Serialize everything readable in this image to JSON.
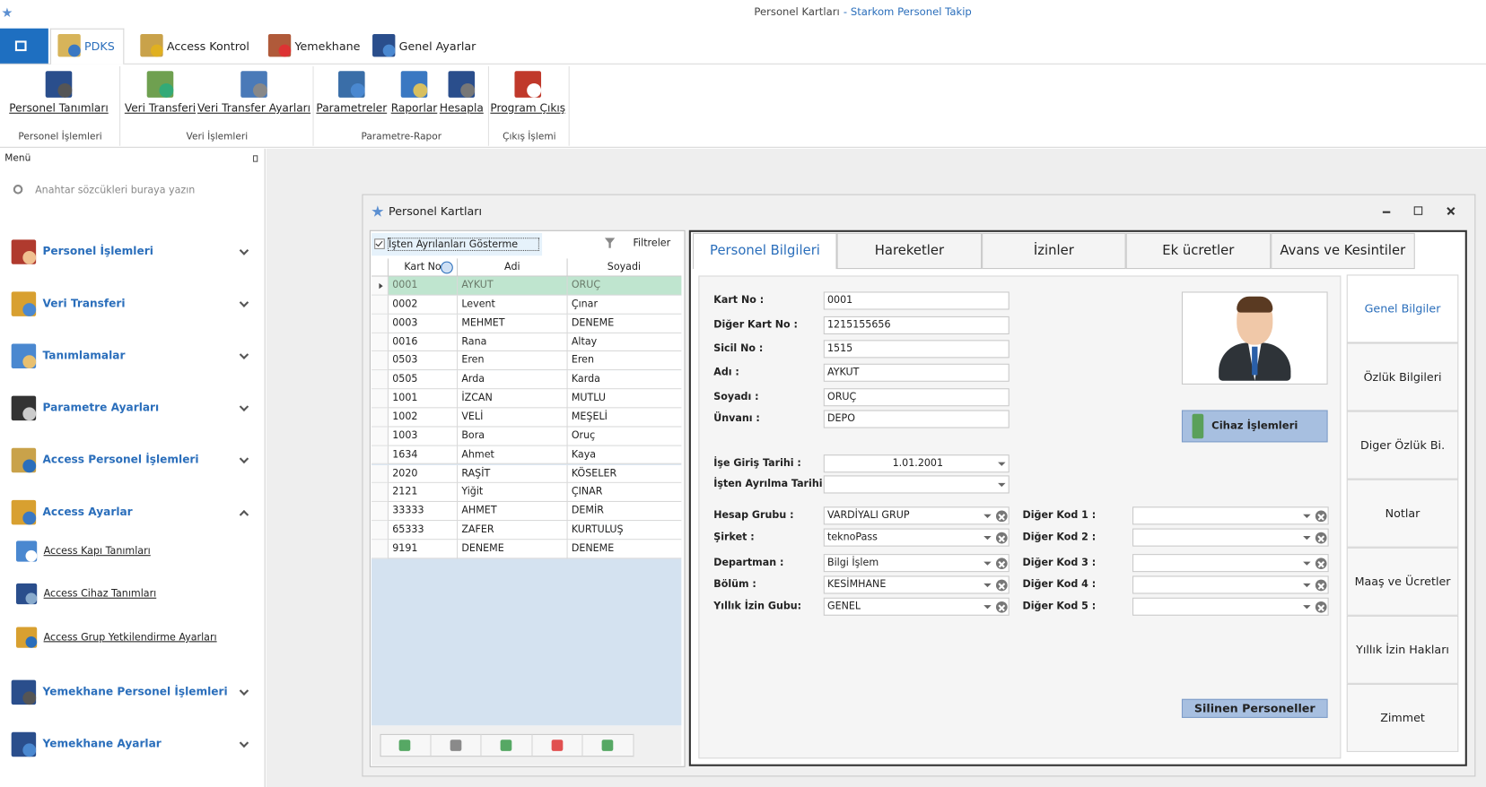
{
  "window": {
    "title": "Personel Kartları",
    "app": "- Starkom Personel Takip"
  },
  "ribbon": {
    "tabs": [
      "PDKS",
      "Access Kontrol",
      "Yemekhane",
      "Genel Ayarlar"
    ],
    "groups": [
      {
        "label": "Personel İşlemleri",
        "buttons": [
          "Personel Tanımları"
        ]
      },
      {
        "label": "Veri İşlemleri",
        "buttons": [
          "Veri Transferi",
          "Veri Transfer Ayarları"
        ]
      },
      {
        "label": "Parametre-Rapor",
        "buttons": [
          "Parametreler",
          "Raporlar",
          "Hesapla"
        ]
      },
      {
        "label": "Çıkış İşlemi",
        "buttons": [
          "Program Çıkış"
        ]
      }
    ]
  },
  "menu": {
    "title": "Menü",
    "search_placeholder": "Anahtar sözcükleri buraya yazın",
    "items": [
      "Personel İşlemleri",
      "Veri Transferi",
      "Tanımlamalar",
      "Parametre Ayarları",
      "Access Personel İşlemleri",
      "Access Ayarlar",
      "Yemekhane Personel İşlemleri",
      "Yemekhane Ayarlar"
    ],
    "subitems": [
      "Access Kapı Tanımları",
      "Access Cihaz Tanımları",
      "Access Grup Yetkilendirme Ayarları"
    ]
  },
  "form": {
    "title": "Personel Kartları",
    "checkbox": "İşten Ayrılanları Gösterme",
    "filter": "Filtreler",
    "table": {
      "columns": [
        "Kart No",
        "Adi",
        "Soyadi"
      ],
      "rows": [
        [
          "0001",
          "AYKUT",
          "ORUÇ"
        ],
        [
          "0002",
          "Levent",
          "Çınar"
        ],
        [
          "0003",
          "MEHMET",
          "DENEME"
        ],
        [
          "0016",
          "Rana",
          "Altay"
        ],
        [
          "0503",
          "Eren",
          "Eren"
        ],
        [
          "0505",
          "Arda",
          "Karda"
        ],
        [
          "1001",
          "İZCAN",
          "MUTLU"
        ],
        [
          "1002",
          "VELİ",
          "MEŞELİ"
        ],
        [
          "1003",
          "Bora",
          "Oruç"
        ],
        [
          "1634",
          "Ahmet",
          "Kaya"
        ],
        [
          "2020",
          "RAŞİT",
          "KÖSELER"
        ],
        [
          "2121",
          "Yiğit",
          "ÇINAR"
        ],
        [
          "33333",
          "AHMET",
          "DEMİR"
        ],
        [
          "65333",
          "ZAFER",
          "KURTULUŞ"
        ],
        [
          "9191",
          "DENEME",
          "DENEME"
        ]
      ]
    },
    "tabs": [
      "Personel Bilgileri",
      "Hareketler",
      "İzinler",
      "Ek ücretler",
      "Avans ve Kesintiler"
    ],
    "side_tabs": [
      "Genel Bilgiler",
      "Özlük Bilgileri",
      "Diger Özlük Bi.",
      "Notlar",
      "Maaş ve Ücretler",
      "Yıllık İzin Hakları",
      "Zimmet"
    ],
    "fields": [
      {
        "label": "Kart No :",
        "value": "0001"
      },
      {
        "label": "Diğer Kart No :",
        "value": "1215155656"
      },
      {
        "label": "Sicil No :",
        "value": "1515"
      },
      {
        "label": "Adı :",
        "value": "AYKUT"
      },
      {
        "label": "Soyadı :",
        "value": "ORUÇ"
      },
      {
        "label": "Ünvanı :",
        "value": "DEPO"
      }
    ],
    "dates": [
      {
        "label": "İşe Giriş Tarihi :",
        "value": "1.01.2001"
      },
      {
        "label": "İşten Ayrılma Tarihi :"
      }
    ],
    "combos": [
      {
        "label": "Hesap Grubu :",
        "value": "VARDİYALI GRUP"
      },
      {
        "label": "Şirket :",
        "value": "teknoPass"
      },
      {
        "label": "Departman :",
        "value": "Bilgi İşlem"
      },
      {
        "label": "Bölüm :",
        "value": "KESİMHANE"
      },
      {
        "label": "Yıllık İzin Gubu:",
        "value": "GENEL"
      }
    ],
    "codes": [
      "Diğer Kod 1 :",
      "Diğer Kod 2 :",
      "Diğer Kod 3 :",
      "Diğer Kod 4 :",
      "Diğer Kod 5 :"
    ],
    "buttons": [
      "Cihaz İşlemleri",
      "Silinen Personeller"
    ]
  }
}
